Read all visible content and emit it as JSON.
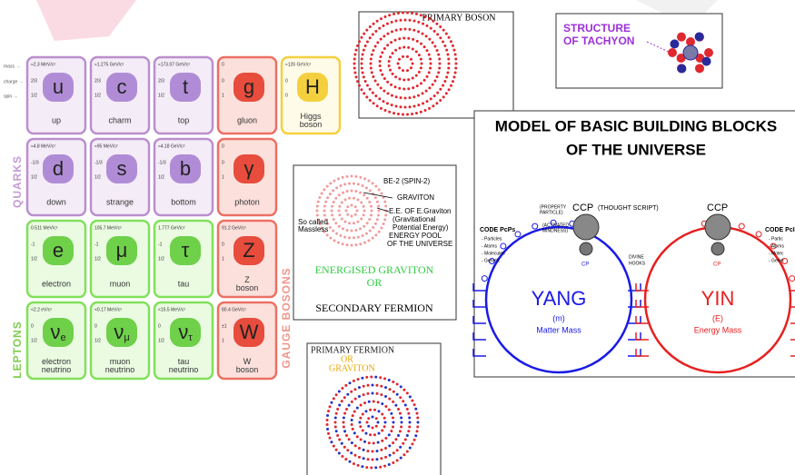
{
  "standard_model": {
    "row_labels": [
      "mass →",
      "charge →",
      "spin →"
    ],
    "groups": [
      "QUARKS",
      "LEPTONS",
      "GAUGE BOSONS"
    ],
    "particles": [
      {
        "mass": "≈2.3 MeV/c²",
        "charge": "2/3",
        "spin": "1/2",
        "symbol": "u",
        "name": "up"
      },
      {
        "mass": "≈1.275 GeV/c²",
        "charge": "2/3",
        "spin": "1/2",
        "symbol": "c",
        "name": "charm"
      },
      {
        "mass": "≈173.07 GeV/c²",
        "charge": "2/3",
        "spin": "1/2",
        "symbol": "t",
        "name": "top"
      },
      {
        "mass": "0",
        "charge": "0",
        "spin": "1",
        "symbol": "g",
        "name": "gluon"
      },
      {
        "mass": "≈126 GeV/c²",
        "charge": "0",
        "spin": "0",
        "symbol": "H",
        "name": "Higgs boson"
      },
      {
        "mass": "≈4.8 MeV/c²",
        "charge": "-1/3",
        "spin": "1/2",
        "symbol": "d",
        "name": "down"
      },
      {
        "mass": "≈95 MeV/c²",
        "charge": "-1/3",
        "spin": "1/2",
        "symbol": "s",
        "name": "strange"
      },
      {
        "mass": "≈4.18 GeV/c²",
        "charge": "-1/3",
        "spin": "1/2",
        "symbol": "b",
        "name": "bottom"
      },
      {
        "mass": "0",
        "charge": "0",
        "spin": "1",
        "symbol": "γ",
        "name": "photon"
      },
      {
        "mass": "0.511 MeV/c²",
        "charge": "-1",
        "spin": "1/2",
        "symbol": "e",
        "name": "electron"
      },
      {
        "mass": "105.7 MeV/c²",
        "charge": "-1",
        "spin": "1/2",
        "symbol": "μ",
        "name": "muon"
      },
      {
        "mass": "1.777 GeV/c²",
        "charge": "-1",
        "spin": "1/2",
        "symbol": "τ",
        "name": "tau"
      },
      {
        "mass": "91.2 GeV/c²",
        "charge": "0",
        "spin": "1",
        "symbol": "Z",
        "name": "Z boson"
      },
      {
        "mass": "<2.2 eV/c²",
        "charge": "0",
        "spin": "1/2",
        "symbol": "ν",
        "subscript": "e",
        "name": "electron neutrino"
      },
      {
        "mass": "<0.17 MeV/c²",
        "charge": "0",
        "spin": "1/2",
        "symbol": "ν",
        "subscript": "μ",
        "name": "muon neutrino"
      },
      {
        "mass": "<15.5 MeV/c²",
        "charge": "0",
        "spin": "1/2",
        "symbol": "ν",
        "subscript": "τ",
        "name": "tau neutrino"
      },
      {
        "mass": "80.4 GeV/c²",
        "charge": "±1",
        "spin": "1",
        "symbol": "W",
        "name": "W boson"
      }
    ]
  },
  "primary_boson": {
    "title": "PRIMARY BOSON"
  },
  "tachyon": {
    "title": [
      "STRUCTURE",
      "OF TACHYON"
    ]
  },
  "graviton_panel": {
    "labels": [
      "BE-2 (SPIN-2)",
      "GRAVITON",
      "E.E. OF E.Graviton",
      "(Gravitational",
      "Potential Energy)",
      "ENERGY POOL",
      "OF THE UNIVERSE",
      "So called",
      "Massless"
    ],
    "caption": [
      "ENERGISED GRAVITON",
      "OR",
      "SECONDARY FERMION"
    ]
  },
  "primary_fermion": {
    "title": [
      "PRIMARY FERMION",
      "OR",
      "GRAVITON"
    ]
  },
  "model": {
    "title": [
      "MODEL OF BASIC BUILDING BLOCKS",
      "OF THE UNIVERSE"
    ],
    "ccp_left": "CCP",
    "thought_script": "(THOUGHT SCRIPT)",
    "property": [
      "(PROPERTY",
      "PARTICLE)"
    ],
    "activated": [
      "(ACTIVATED",
      "MINDNESS)"
    ],
    "code_left": "CODE PcPs",
    "code_items": [
      "- Particles",
      "- Atoms",
      "- Molecules",
      "- Genetic"
    ],
    "cp_left": "CP",
    "hooks": [
      "DIVINE",
      "HOOKS"
    ],
    "yang": "YANG",
    "yang_sym": "(m)",
    "yang_text": "Matter Mass",
    "ccp_right": "CCP",
    "code_right": "CODE PcI",
    "code_items_right": [
      "- Partic",
      "- Atoms",
      "- Molec",
      "- Genet"
    ],
    "cp_right": "CP",
    "yin": "YIN",
    "yin_sym": "(E)",
    "yin_text": "Energy Mass"
  }
}
